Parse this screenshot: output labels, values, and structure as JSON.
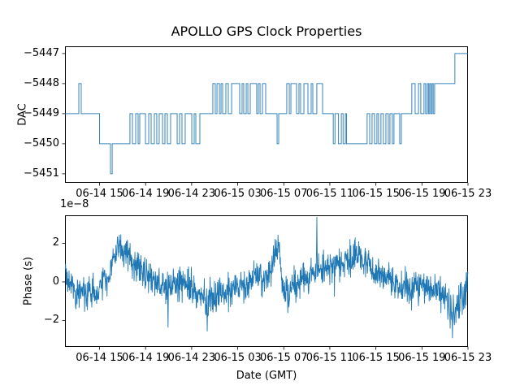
{
  "figure": {
    "title": "APOLLO GPS Clock Properties",
    "xlabel": "Date (GMT)",
    "background": "#ffffff",
    "line_color": "#1f77b4",
    "spine_color": "#000000"
  },
  "chart_data": [
    {
      "type": "line",
      "subtype": "step-post",
      "name": "dac-subplot",
      "ylabel": "DAC",
      "x_unit": "hours since 06-14 12:00 GMT",
      "xlim": [
        0,
        35
      ],
      "ylim": [
        -5451.3,
        -5446.76
      ],
      "yticks": [
        -5447,
        -5448,
        -5449,
        -5450,
        -5451
      ],
      "ytick_labels": [
        "−5447",
        "−5448",
        "−5449",
        "−5450",
        "−5451"
      ],
      "xtick_hours": [
        3,
        7,
        11,
        15,
        19,
        23,
        27,
        31,
        35
      ],
      "xtick_labels": [
        "06-14 15",
        "06-14 19",
        "06-14 23",
        "06-15 03",
        "06-15 07",
        "06-15 11",
        "06-15 15",
        "06-15 19",
        "06-15 23"
      ],
      "steps": [
        [
          0,
          -5449
        ],
        [
          1.2,
          -5448
        ],
        [
          1.41,
          -5449
        ],
        [
          3.0,
          -5450
        ],
        [
          3.95,
          -5451
        ],
        [
          4.1,
          -5450
        ],
        [
          5.64,
          -5449
        ],
        [
          5.86,
          -5450
        ],
        [
          6.14,
          -5449
        ],
        [
          6.35,
          -5450
        ],
        [
          6.49,
          -5449
        ],
        [
          6.99,
          -5450
        ],
        [
          7.27,
          -5449
        ],
        [
          7.48,
          -5450
        ],
        [
          7.76,
          -5449
        ],
        [
          7.97,
          -5450
        ],
        [
          8.18,
          -5449
        ],
        [
          8.47,
          -5450
        ],
        [
          8.68,
          -5449
        ],
        [
          8.89,
          -5450
        ],
        [
          9.17,
          -5449
        ],
        [
          9.74,
          -5450
        ],
        [
          9.95,
          -5449
        ],
        [
          10.16,
          -5450
        ],
        [
          10.44,
          -5449
        ],
        [
          11.01,
          -5450
        ],
        [
          11.22,
          -5449
        ],
        [
          11.36,
          -5450
        ],
        [
          11.71,
          -5449
        ],
        [
          12.84,
          -5448
        ],
        [
          13.05,
          -5449
        ],
        [
          13.2,
          -5448
        ],
        [
          13.41,
          -5449
        ],
        [
          13.55,
          -5448
        ],
        [
          13.69,
          -5449
        ],
        [
          13.97,
          -5448
        ],
        [
          14.18,
          -5449
        ],
        [
          14.47,
          -5448
        ],
        [
          15.17,
          -5449
        ],
        [
          15.38,
          -5448
        ],
        [
          15.52,
          -5449
        ],
        [
          15.74,
          -5448
        ],
        [
          15.88,
          -5449
        ],
        [
          16.09,
          -5448
        ],
        [
          16.65,
          -5449
        ],
        [
          16.79,
          -5448
        ],
        [
          16.94,
          -5449
        ],
        [
          17.15,
          -5448
        ],
        [
          17.43,
          -5449
        ],
        [
          18.42,
          -5450
        ],
        [
          18.56,
          -5449
        ],
        [
          19.26,
          -5448
        ],
        [
          19.48,
          -5449
        ],
        [
          19.62,
          -5448
        ],
        [
          20.11,
          -5449
        ],
        [
          20.32,
          -5448
        ],
        [
          20.46,
          -5449
        ],
        [
          20.75,
          -5448
        ],
        [
          21.1,
          -5449
        ],
        [
          21.38,
          -5448
        ],
        [
          21.52,
          -5449
        ],
        [
          21.87,
          -5448
        ],
        [
          22.37,
          -5449
        ],
        [
          23.3,
          -5450
        ],
        [
          23.45,
          -5449
        ],
        [
          23.75,
          -5450
        ],
        [
          24.0,
          -5449
        ],
        [
          24.15,
          -5450
        ],
        [
          24.35,
          -5449
        ],
        [
          24.45,
          -5450
        ],
        [
          26.24,
          -5449
        ],
        [
          26.46,
          -5450
        ],
        [
          26.67,
          -5449
        ],
        [
          26.88,
          -5450
        ],
        [
          27.09,
          -5449
        ],
        [
          27.23,
          -5450
        ],
        [
          27.44,
          -5449
        ],
        [
          27.65,
          -5450
        ],
        [
          27.87,
          -5449
        ],
        [
          28.08,
          -5450
        ],
        [
          28.22,
          -5449
        ],
        [
          28.43,
          -5450
        ],
        [
          28.57,
          -5449
        ],
        [
          29.07,
          -5450
        ],
        [
          29.21,
          -5449
        ],
        [
          30.12,
          -5448
        ],
        [
          30.41,
          -5449
        ],
        [
          30.7,
          -5448
        ],
        [
          30.9,
          -5449
        ],
        [
          31.18,
          -5448
        ],
        [
          31.32,
          -5449
        ],
        [
          31.46,
          -5448
        ],
        [
          31.57,
          -5449
        ],
        [
          31.67,
          -5448
        ],
        [
          31.77,
          -5449
        ],
        [
          31.88,
          -5448
        ],
        [
          31.98,
          -5449
        ],
        [
          32.1,
          -5448
        ],
        [
          33.86,
          -5447
        ]
      ]
    },
    {
      "type": "line",
      "subtype": "noisy-series",
      "name": "phase-subplot",
      "ylabel": "Phase (s)",
      "offset_label": "1e−8",
      "value_unit": "1e-8 s",
      "x_unit": "hours since 06-14 12:00 GMT",
      "xlim": [
        0,
        35
      ],
      "ylim": [
        -3.37,
        3.45
      ],
      "yticks": [
        -2,
        0,
        2
      ],
      "ytick_labels": [
        "−2",
        "0",
        "2"
      ],
      "xtick_hours": [
        3,
        7,
        11,
        15,
        19,
        23,
        27,
        31,
        35
      ],
      "xtick_labels": [
        "06-14 15",
        "06-14 19",
        "06-14 23",
        "06-15 03",
        "06-15 07",
        "06-15 11",
        "06-15 15",
        "06-15 19",
        "06-15 23"
      ],
      "trend": [
        [
          0,
          0.4
        ],
        [
          0.35,
          0
        ],
        [
          0.85,
          -0.5
        ],
        [
          1.4,
          -0.55
        ],
        [
          2.1,
          -0.6
        ],
        [
          2.8,
          -0.55
        ],
        [
          3.3,
          0.2
        ],
        [
          3.75,
          0.1
        ],
        [
          4.2,
          1.2
        ],
        [
          4.66,
          1.9
        ],
        [
          5.1,
          1.4
        ],
        [
          5.5,
          1.5
        ],
        [
          6.0,
          0.8
        ],
        [
          6.7,
          0.55
        ],
        [
          7.4,
          0.3
        ],
        [
          8.1,
          -0.1
        ],
        [
          8.8,
          -0.35
        ],
        [
          9.5,
          -0.2
        ],
        [
          10.2,
          -0.1
        ],
        [
          10.9,
          -0.15
        ],
        [
          11.6,
          -0.8
        ],
        [
          12.3,
          -1.0
        ],
        [
          13.1,
          -0.6
        ],
        [
          13.8,
          -0.55
        ],
        [
          14.5,
          -0.45
        ],
        [
          15.2,
          -0.3
        ],
        [
          15.9,
          -0.1
        ],
        [
          16.4,
          0.6
        ],
        [
          16.8,
          0.3
        ],
        [
          17.3,
          0.15
        ],
        [
          17.8,
          0.5
        ],
        [
          18.3,
          1.4
        ],
        [
          18.6,
          1.8
        ],
        [
          18.85,
          -0.2
        ],
        [
          19.4,
          -0.6
        ],
        [
          19.9,
          -0.1
        ],
        [
          20.5,
          0.1
        ],
        [
          21.2,
          0.2
        ],
        [
          21.7,
          0.6
        ],
        [
          22.1,
          0.7
        ],
        [
          22.6,
          0.8
        ],
        [
          23.3,
          0.9
        ],
        [
          24.0,
          1.0
        ],
        [
          24.7,
          1.1
        ],
        [
          25.4,
          1.3
        ],
        [
          26.1,
          1.0
        ],
        [
          26.8,
          0.6
        ],
        [
          27.5,
          0.4
        ],
        [
          28.2,
          0.1
        ],
        [
          28.9,
          -0.2
        ],
        [
          29.6,
          -0.25
        ],
        [
          30.3,
          -0.45
        ],
        [
          31.0,
          -0.3
        ],
        [
          31.75,
          -0.1
        ],
        [
          32.45,
          -0.5
        ],
        [
          33.0,
          -0.7
        ],
        [
          33.6,
          -1.3
        ],
        [
          33.9,
          -1.6
        ],
        [
          34.2,
          -1.1
        ],
        [
          34.6,
          -0.7
        ],
        [
          34.85,
          -0.3
        ],
        [
          35,
          0.6
        ]
      ],
      "spikes": [
        [
          4.8,
          2.15
        ],
        [
          5.35,
          2.1
        ],
        [
          8.95,
          -2.35
        ],
        [
          12.35,
          -2.55
        ],
        [
          19.35,
          -1.6
        ],
        [
          21.87,
          3.35
        ],
        [
          33.45,
          -2.4
        ],
        [
          33.65,
          -2.9
        ]
      ],
      "noise_sigma": 0.42,
      "points_per_hour": 40,
      "seed": 20240615
    }
  ],
  "layout_hints": {
    "grid": "off",
    "legend": "none",
    "tick_direction": "out"
  }
}
